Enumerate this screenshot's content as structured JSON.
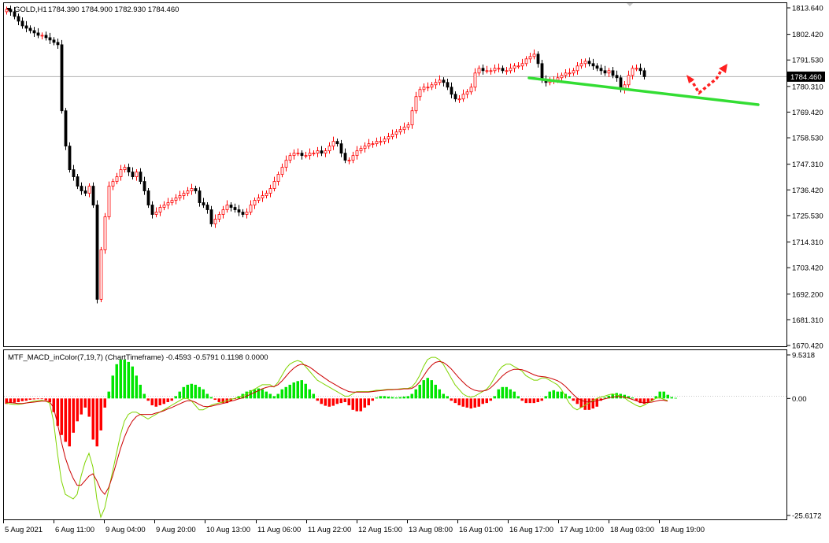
{
  "window": {
    "title": "GOLD,H1",
    "menu_icon": "triangle-down-icon",
    "ohlc": "1784.390 1784.900 1782.930 1784.460"
  },
  "price_axis": {
    "ticks": [
      1813.64,
      1802.42,
      1791.53,
      1780.31,
      1769.42,
      1758.53,
      1747.31,
      1736.42,
      1725.53,
      1714.31,
      1703.42,
      1692.2,
      1681.31,
      1670.42
    ],
    "current": "1784.460"
  },
  "indicator": {
    "title": "MTF_MACD_inColor(7,19,7) (ChartTimeframe) -0.4593 -0.5791 0.1198 0.0000",
    "ticks": [
      "9.5318",
      "0.00",
      "-25.6172"
    ]
  },
  "time_axis": {
    "labels": [
      "5 Aug 2021",
      "6 Aug 11:00",
      "9 Aug 04:00",
      "9 Aug 20:00",
      "10 Aug 13:00",
      "11 Aug 06:00",
      "11 Aug 22:00",
      "12 Aug 15:00",
      "13 Aug 08:00",
      "16 Aug 01:00",
      "16 Aug 17:00",
      "17 Aug 10:00",
      "18 Aug 03:00",
      "18 Aug 19:00"
    ]
  },
  "colors": {
    "bull": "#ff0000",
    "bear": "#000000",
    "hist_pos": "#00e600",
    "hist_neg": "#ff0000",
    "macd_line": "#7fd400",
    "signal_line": "#cc0000",
    "trendline": "#33dd33",
    "arrow": "#ff2020"
  },
  "chart_data": [
    {
      "type": "candlestick",
      "symbol": "GOLD",
      "timeframe": "H1",
      "ylim": [
        1670.42,
        1813.64
      ],
      "closes": [
        1813,
        1812,
        1810,
        1808,
        1806,
        1805,
        1804,
        1803,
        1802,
        1802,
        1801,
        1800,
        1799,
        1798,
        1770,
        1755,
        1745,
        1742,
        1738,
        1736,
        1735,
        1738,
        1730,
        1690,
        1711,
        1725,
        1738,
        1740,
        1742,
        1745,
        1746,
        1744,
        1742,
        1744,
        1740,
        1736,
        1730,
        1726,
        1727,
        1729,
        1730,
        1731,
        1732,
        1733,
        1734,
        1735,
        1736,
        1737,
        1736,
        1731,
        1730,
        1728,
        1722,
        1724,
        1726,
        1728,
        1730,
        1729,
        1728,
        1727,
        1726,
        1727,
        1730,
        1732,
        1733,
        1734,
        1735,
        1737,
        1740,
        1743,
        1746,
        1749,
        1751,
        1752,
        1752,
        1751,
        1751,
        1752,
        1752,
        1753,
        1752,
        1753,
        1755,
        1757,
        1756,
        1752,
        1749,
        1749,
        1751,
        1753,
        1754,
        1755,
        1756,
        1756,
        1757,
        1757,
        1758,
        1759,
        1760,
        1761,
        1762,
        1763,
        1764,
        1770,
        1776,
        1779,
        1780,
        1780,
        1781,
        1782,
        1783,
        1782,
        1780,
        1777,
        1775,
        1775,
        1777,
        1778,
        1780,
        1786,
        1788,
        1787,
        1787,
        1787,
        1788,
        1788,
        1787,
        1787,
        1788,
        1789,
        1789,
        1790,
        1792,
        1793,
        1794,
        1790,
        1783,
        1782,
        1783,
        1783,
        1784,
        1785,
        1786,
        1786,
        1787,
        1789,
        1790,
        1791,
        1790,
        1789,
        1788,
        1787,
        1786,
        1787,
        1785,
        1784,
        1779,
        1781,
        1785,
        1788,
        1788,
        1787,
        1784.46
      ],
      "last_close": 1784.46
    },
    {
      "type": "histogram_with_lines",
      "name": "MTF_MACD_inColor",
      "ylim": [
        -25.6172,
        9.5318
      ],
      "histogram": [
        -1.2,
        -1.0,
        -0.9,
        -0.8,
        -0.6,
        -0.5,
        -0.3,
        -0.2,
        -0.1,
        -0.1,
        -0.4,
        -0.8,
        -3.0,
        -6.0,
        -8.0,
        -9.5,
        -10.5,
        -7.5,
        -5.0,
        -3.5,
        -2.0,
        -4.0,
        -9.0,
        -10.5,
        -7.0,
        -2.0,
        1.5,
        5.0,
        7.5,
        8.5,
        8.5,
        8.0,
        7.0,
        5.0,
        3.0,
        1.0,
        -0.5,
        -1.5,
        -1.8,
        -1.5,
        -1.2,
        -0.8,
        -0.5,
        0.5,
        1.5,
        2.5,
        3.0,
        3.2,
        3.0,
        2.5,
        2.0,
        1.0,
        0.3,
        -0.3,
        -0.8,
        -1.0,
        -1.0,
        -0.6,
        -0.1,
        0.5,
        1.0,
        1.5,
        1.8,
        2.0,
        2.2,
        2.0,
        1.5,
        1.0,
        0.5,
        1.0,
        2.0,
        2.5,
        3.0,
        3.5,
        3.8,
        4.0,
        3.2,
        2.0,
        1.0,
        -0.5,
        -1.2,
        -1.6,
        -1.8,
        -1.6,
        -1.2,
        -1.0,
        -0.8,
        -1.5,
        -2.5,
        -2.8,
        -2.8,
        -2.0,
        -1.5,
        -0.5,
        0.2,
        0.5,
        0.5,
        0.4,
        0.3,
        0.2,
        0.3,
        0.4,
        0.5,
        1.0,
        2.0,
        3.0,
        4.0,
        4.5,
        4.0,
        3.0,
        2.0,
        1.0,
        0.5,
        -0.5,
        -1.0,
        -1.5,
        -1.8,
        -2.0,
        -2.2,
        -2.0,
        -1.8,
        -1.2,
        -1.0,
        -0.5,
        0.5,
        2.0,
        2.5,
        2.5,
        2.0,
        1.5,
        0.5,
        -0.5,
        -1.0,
        -1.0,
        -1.0,
        -0.8,
        -0.5,
        0.5,
        1.5,
        1.8,
        1.5,
        1.5,
        1.0,
        0.5,
        -0.5,
        -1.2,
        -2.0,
        -2.5,
        -2.5,
        -2.2,
        -1.8,
        -0.5,
        0.2,
        0.6,
        1.0,
        1.2,
        1.0,
        0.8,
        0.5,
        0.2,
        -0.5,
        -1.0,
        -1.2,
        -0.8,
        -0.5,
        0.5,
        1.5,
        1.5,
        0.8,
        0.3,
        0.12
      ],
      "macd_line": [
        -1.0,
        -1.2,
        -1.3,
        -1.3,
        -1.2,
        -1.0,
        -0.8,
        -0.6,
        -0.5,
        -0.4,
        -0.6,
        -1.0,
        -5.0,
        -12.0,
        -18.0,
        -21.0,
        -21.5,
        -22.0,
        -21.0,
        -17.0,
        -14.0,
        -12.0,
        -15.0,
        -22.0,
        -26.0,
        -24.0,
        -20.0,
        -16.0,
        -12.0,
        -8.0,
        -5.0,
        -3.5,
        -3.0,
        -3.0,
        -3.5,
        -4.0,
        -4.5,
        -4.0,
        -3.5,
        -3.0,
        -2.5,
        -2.0,
        -1.5,
        -1.0,
        -0.5,
        0.0,
        0.0,
        -0.5,
        -1.5,
        -2.5,
        -2.5,
        -2.0,
        -1.5,
        -1.2,
        -1.0,
        -0.8,
        -0.5,
        -0.2,
        0.0,
        0.3,
        0.5,
        1.0,
        1.5,
        2.0,
        2.5,
        3.0,
        3.0,
        3.0,
        2.5,
        3.5,
        5.0,
        6.5,
        7.5,
        8.0,
        8.3,
        8.0,
        7.0,
        6.0,
        5.0,
        4.0,
        3.5,
        3.0,
        2.5,
        2.0,
        1.5,
        1.0,
        0.5,
        0.5,
        1.0,
        1.5,
        1.5,
        1.5,
        1.5,
        1.6,
        1.8,
        1.8,
        1.9,
        2.0,
        2.0,
        2.0,
        2.1,
        2.2,
        2.2,
        2.5,
        3.5,
        5.0,
        7.0,
        8.5,
        9.0,
        9.0,
        8.5,
        7.5,
        6.0,
        4.5,
        3.0,
        2.0,
        1.0,
        0.5,
        0.3,
        0.5,
        1.0,
        1.5,
        2.0,
        3.0,
        4.5,
        6.0,
        7.0,
        7.5,
        7.5,
        7.0,
        6.5,
        6.0,
        5.0,
        4.5,
        4.0,
        4.0,
        4.5,
        4.5,
        4.0,
        3.5,
        3.0,
        2.0,
        0.5,
        -1.0,
        -2.0,
        -2.5,
        -2.0,
        -1.5,
        -1.0,
        -0.5,
        0.0,
        0.3,
        0.5,
        0.8,
        1.0,
        0.8,
        0.5,
        0.2,
        -0.5,
        -1.0,
        -1.5,
        -1.8,
        -1.5,
        -1.0,
        -0.5,
        0.0,
        0.2,
        -0.2,
        -0.46
      ],
      "signal_line": [
        -0.8,
        -0.9,
        -1.0,
        -1.1,
        -1.1,
        -1.0,
        -0.9,
        -0.8,
        -0.7,
        -0.6,
        -0.6,
        -0.7,
        -2.0,
        -5.5,
        -9.5,
        -13.0,
        -15.5,
        -17.5,
        -19.0,
        -19.0,
        -18.0,
        -17.0,
        -16.5,
        -18.0,
        -20.0,
        -21.0,
        -19.5,
        -17.0,
        -14.0,
        -11.0,
        -8.5,
        -6.5,
        -5.0,
        -4.0,
        -3.5,
        -3.5,
        -3.5,
        -3.5,
        -3.2,
        -3.0,
        -2.7,
        -2.3,
        -2.0,
        -1.6,
        -1.2,
        -0.8,
        -0.5,
        -0.5,
        -0.8,
        -1.3,
        -1.7,
        -1.8,
        -1.7,
        -1.5,
        -1.3,
        -1.1,
        -0.9,
        -0.6,
        -0.4,
        -0.1,
        0.1,
        0.5,
        0.9,
        1.3,
        1.7,
        2.1,
        2.4,
        2.6,
        2.6,
        3.0,
        3.8,
        4.8,
        5.8,
        6.6,
        7.2,
        7.5,
        7.3,
        6.9,
        6.3,
        5.6,
        5.0,
        4.4,
        3.8,
        3.3,
        2.8,
        2.3,
        1.9,
        1.5,
        1.4,
        1.4,
        1.4,
        1.4,
        1.4,
        1.5,
        1.6,
        1.7,
        1.8,
        1.9,
        1.9,
        2.0,
        2.0,
        2.1,
        2.1,
        2.2,
        2.7,
        3.6,
        4.9,
        6.2,
        7.2,
        7.9,
        8.1,
        7.9,
        7.3,
        6.5,
        5.5,
        4.5,
        3.6,
        2.8,
        2.2,
        1.8,
        1.6,
        1.6,
        1.8,
        2.3,
        3.1,
        4.0,
        4.9,
        5.6,
        6.1,
        6.4,
        6.4,
        6.3,
        6.0,
        5.6,
        5.2,
        4.9,
        4.8,
        4.7,
        4.5,
        4.2,
        3.9,
        3.4,
        2.7,
        1.8,
        0.9,
        0.1,
        -0.4,
        -0.7,
        -0.8,
        -0.7,
        -0.5,
        -0.3,
        -0.1,
        0.1,
        0.3,
        0.4,
        0.4,
        0.3,
        0.1,
        -0.2,
        -0.5,
        -0.8,
        -0.9,
        -0.9,
        -0.8,
        -0.6,
        -0.4,
        -0.4,
        -0.58
      ]
    }
  ]
}
